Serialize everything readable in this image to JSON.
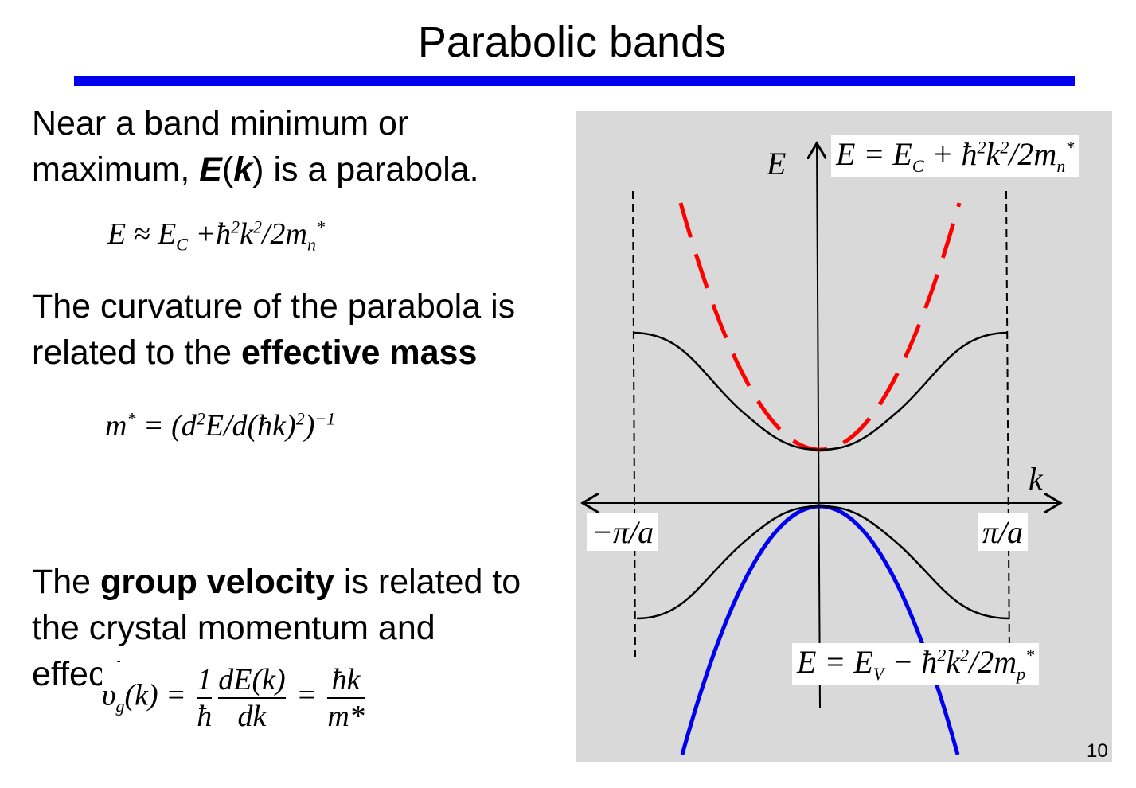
{
  "header": {
    "title": "Parabolic bands"
  },
  "body": {
    "p1": [
      "Near a band minimum or maximum, ",
      "E",
      "(",
      "k",
      ") is a parabola."
    ],
    "eq1": [
      "E ≈ E",
      "C",
      " +ħ",
      "2",
      "k",
      "2",
      "/2m",
      "n",
      "*"
    ],
    "p2": [
      "The curvature of the parabola is related to the ",
      "effective mass"
    ],
    "eq2": [
      "m",
      "*",
      " = (d",
      "2",
      "E/d(ħk)",
      "2",
      ")",
      "−1"
    ],
    "p3": [
      "The ",
      "group velocity",
      " is related to the crystal momentum and effective mass."
    ],
    "eq3": [
      "υ",
      "g",
      "(k) = ",
      "1",
      "ħ",
      "dE(k)",
      "dk",
      " = ",
      "ħk",
      "m*"
    ]
  },
  "diagram": {
    "e_axis": "E",
    "k_axis": "k",
    "left_edge": "−π/a",
    "right_edge": "π/a",
    "conduction_eq": [
      "E = E",
      "C",
      " + ħ",
      "2",
      "k",
      "2",
      "/2m",
      "n",
      "*"
    ],
    "valence_eq": [
      "E = E",
      "V",
      " − ħ",
      "2",
      "k",
      "2",
      "/2m",
      "p",
      "*"
    ]
  },
  "footer": {
    "page": "10"
  }
}
